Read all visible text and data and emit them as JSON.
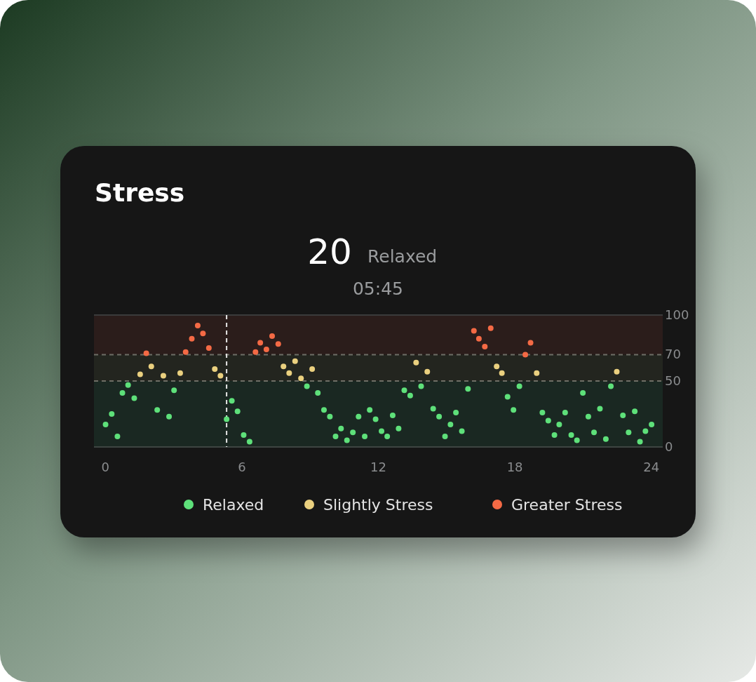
{
  "chart_data": {
    "type": "scatter",
    "title": "Stress",
    "annotations": [
      "20",
      "Relaxed",
      "05:45"
    ],
    "xlim": [
      -0.5,
      24.5
    ],
    "xticks": [
      0,
      6,
      12,
      18,
      24
    ],
    "ylim": [
      0,
      100
    ],
    "yticks": [
      0,
      50,
      70,
      100
    ],
    "grid": false,
    "legend": "bottom",
    "marker": "circle",
    "bands": [
      {
        "axis": "y",
        "from": 0,
        "to": 50,
        "color": "#1a2822"
      },
      {
        "axis": "y",
        "from": 50,
        "to": 70,
        "color": "#23251f"
      },
      {
        "axis": "y",
        "from": 70,
        "to": 100,
        "color": "#2b1d1b"
      }
    ],
    "ref_lines": [
      {
        "axis": "y",
        "value": 70,
        "color": "#6e6e66",
        "line_style": "dashed"
      },
      {
        "axis": "y",
        "value": 50,
        "color": "#6e6e66",
        "line_style": "dashed"
      },
      {
        "axis": "x",
        "value": 5.33,
        "color": "#e8e8e8",
        "line_style": "dashed"
      }
    ],
    "series": [
      {
        "name": "Relaxed",
        "color": "#5ee07a",
        "x": [
          0.01,
          0.28,
          0.53,
          0.75,
          1.0,
          1.27,
          2.28,
          2.8,
          3.02,
          5.33,
          5.56,
          5.81,
          6.08,
          6.34,
          8.86,
          9.34,
          9.61,
          9.87,
          10.12,
          10.36,
          10.62,
          10.88,
          11.13,
          11.4,
          11.62,
          11.88,
          12.14,
          12.39,
          12.63,
          12.89,
          13.14,
          13.4,
          13.88,
          14.41,
          14.67,
          14.93,
          15.17,
          15.41,
          15.67,
          15.94,
          17.68,
          17.94,
          18.2,
          19.21,
          19.47,
          19.74,
          19.95,
          20.21,
          20.48,
          20.73,
          20.99,
          21.23,
          21.48,
          21.74,
          22.0,
          22.22,
          22.75,
          23.0,
          23.27,
          23.5,
          23.74,
          24.01
        ],
        "values": [
          17,
          25,
          8,
          41,
          47,
          37,
          28,
          23,
          43,
          21,
          35,
          27,
          9,
          4,
          46,
          41,
          28,
          23,
          8,
          14,
          5,
          11,
          23,
          8,
          28,
          21,
          12,
          8,
          24,
          14,
          43,
          39,
          46,
          29,
          23,
          8,
          17,
          26,
          12,
          44,
          38,
          28,
          46,
          26,
          20,
          9,
          17,
          26,
          9,
          5,
          41,
          23,
          11,
          29,
          6,
          46,
          24,
          11,
          27,
          4,
          12,
          17
        ]
      },
      {
        "name": "Slightly Stress",
        "color": "#ead07f",
        "x": [
          1.53,
          2.02,
          2.55,
          3.29,
          4.81,
          5.06,
          7.83,
          8.08,
          8.34,
          8.6,
          9.09,
          13.66,
          14.15,
          17.2,
          17.43,
          18.96,
          22.48
        ],
        "values": [
          55,
          61,
          54,
          56,
          59,
          54,
          61,
          56,
          65,
          52,
          59,
          64,
          57,
          61,
          56,
          56,
          57
        ]
      },
      {
        "name": "Greater Stress",
        "color": "#f46a45",
        "x": [
          1.8,
          3.53,
          3.8,
          4.06,
          4.29,
          4.55,
          6.6,
          6.81,
          7.08,
          7.33,
          7.6,
          16.2,
          16.42,
          16.68,
          16.94,
          18.46,
          18.69
        ],
        "values": [
          71,
          72,
          82,
          92,
          86,
          75,
          72,
          79,
          74,
          84,
          78,
          88,
          82,
          76,
          90,
          70,
          79
        ]
      }
    ]
  }
}
